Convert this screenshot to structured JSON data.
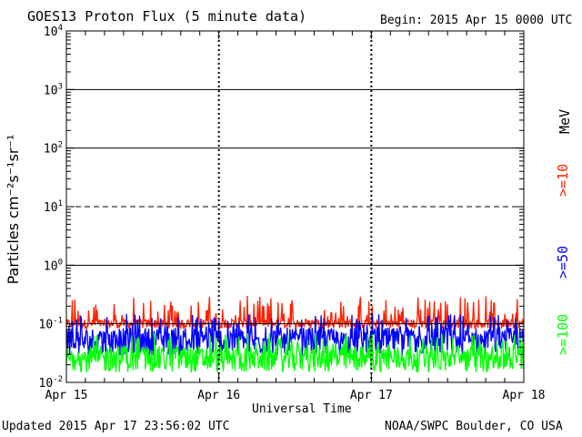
{
  "chart_data": {
    "type": "line",
    "title": "GOES13 Proton Flux (5 minute data)",
    "begin_label": "Begin: 2015 Apr 15 0000 UTC",
    "xlabel": "Universal Time",
    "ylabel": "Particles cm⁻²s⁻¹sr⁻¹",
    "x_ticks": [
      "Apr 15",
      "Apr 16",
      "Apr 17",
      "Apr 18"
    ],
    "x_range_days": [
      0,
      3
    ],
    "y_scale": "log",
    "ylim": [
      0.01,
      10000
    ],
    "y_ticks": [
      {
        "base": "10",
        "exp": "4"
      },
      {
        "base": "10",
        "exp": "3"
      },
      {
        "base": "10",
        "exp": "2"
      },
      {
        "base": "10",
        "exp": "1"
      },
      {
        "base": "10",
        "exp": "0"
      },
      {
        "base": "10",
        "exp": "-1"
      },
      {
        "base": "10",
        "exp": "-2"
      }
    ],
    "threshold_line": {
      "value": 10,
      "style": "dashed"
    },
    "series": [
      {
        "name": ">=10",
        "color": "#ff2000",
        "typical": 0.1,
        "range": [
          0.08,
          0.3
        ]
      },
      {
        "name": ">=50",
        "color": "#0000ff",
        "typical": 0.05,
        "range": [
          0.025,
          0.15
        ]
      },
      {
        "name": ">=100",
        "color": "#00ff00",
        "typical": 0.025,
        "range": [
          0.013,
          0.07
        ]
      }
    ],
    "unit_label": "MeV",
    "grid": true
  },
  "footer": {
    "updated": "Updated 2015 Apr 17 23:56:02 UTC",
    "credit": "NOAA/SWPC Boulder, CO USA"
  }
}
